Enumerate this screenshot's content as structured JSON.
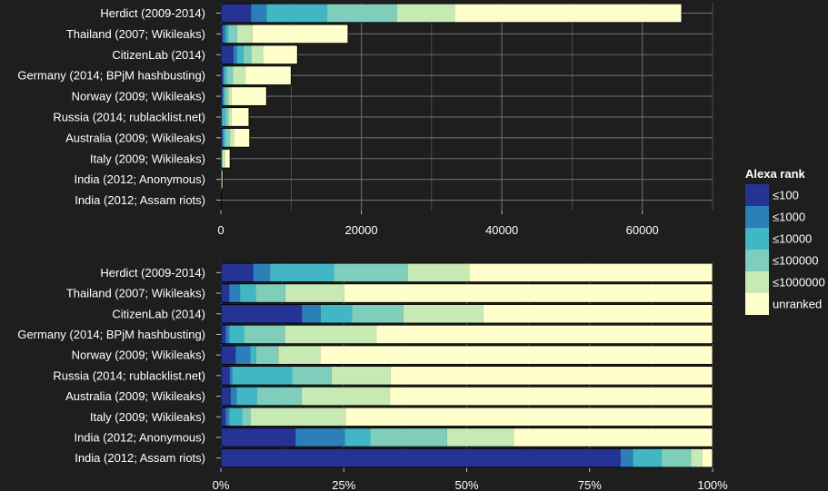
{
  "chart_data": [
    {
      "type": "bar",
      "orientation": "horizontal",
      "stacked": true,
      "categories": [
        "Herdict (2009-2014)",
        "Thailand (2007; Wikileaks)",
        "CitizenLab (2014)",
        "Germany (2014; BPjM hashbusting)",
        "Norway (2009; Wikileaks)",
        "Russia (2014; rublacklist.net)",
        "Australia (2009; Wikileaks)",
        "Italy (2009; Wikileaks)",
        "India (2012; Anonymous)",
        "India (2012; Assam riots)"
      ],
      "series": [
        {
          "name": "≤100",
          "values": [
            4300,
            300,
            1800,
            300,
            200,
            80,
            200,
            60,
            40,
            20
          ]
        },
        {
          "name": "≤1000",
          "values": [
            2200,
            400,
            500,
            150,
            200,
            80,
            150,
            30,
            30,
            5
          ]
        },
        {
          "name": "≤10000",
          "values": [
            8600,
            400,
            900,
            350,
            150,
            550,
            300,
            80,
            15,
            5
          ]
        },
        {
          "name": "≤100000",
          "values": [
            10000,
            1200,
            1200,
            900,
            500,
            350,
            650,
            40,
            50,
            5
          ]
        },
        {
          "name": "≤1000000",
          "values": [
            8200,
            2200,
            1600,
            1800,
            500,
            450,
            550,
            400,
            40,
            2
          ]
        },
        {
          "name": "unranked",
          "values": [
            32300,
            13600,
            4900,
            6500,
            4950,
            2490,
            2250,
            700,
            120,
            3
          ]
        }
      ],
      "xlim": [
        0,
        70000
      ],
      "xticks": [
        "0",
        "20000",
        "40000",
        "60000"
      ],
      "xtick_values": [
        0,
        20000,
        40000,
        60000
      ],
      "grid": true
    },
    {
      "type": "bar",
      "orientation": "horizontal",
      "stacked": true,
      "normalized": true,
      "categories": [
        "Herdict (2009-2014)",
        "Thailand (2007; Wikileaks)",
        "CitizenLab (2014)",
        "Germany (2014; BPjM hashbusting)",
        "Norway (2009; Wikileaks)",
        "Russia (2014; rublacklist.net)",
        "Australia (2009; Wikileaks)",
        "Italy (2009; Wikileaks)",
        "India (2012; Anonymous)",
        "India (2012; Assam riots)"
      ],
      "series": [
        {
          "name": "≤100",
          "values": [
            0.066,
            0.017,
            0.165,
            0.01,
            0.03,
            0.018,
            0.02,
            0.01,
            0.152,
            0.813
          ]
        },
        {
          "name": "≤1000",
          "values": [
            0.034,
            0.022,
            0.038,
            0.007,
            0.03,
            0.005,
            0.012,
            0.007,
            0.1,
            0.025
          ]
        },
        {
          "name": "≤10000",
          "values": [
            0.13,
            0.032,
            0.064,
            0.03,
            0.012,
            0.122,
            0.042,
            0.026,
            0.052,
            0.058
          ]
        },
        {
          "name": "≤100000",
          "values": [
            0.15,
            0.06,
            0.104,
            0.083,
            0.045,
            0.08,
            0.09,
            0.018,
            0.156,
            0.06
          ]
        },
        {
          "name": "≤1000000",
          "values": [
            0.125,
            0.12,
            0.163,
            0.187,
            0.085,
            0.12,
            0.18,
            0.193,
            0.136,
            0.023
          ]
        },
        {
          "name": "unranked",
          "values": [
            0.495,
            0.749,
            0.466,
            0.683,
            0.798,
            0.655,
            0.656,
            0.746,
            0.404,
            0.021
          ]
        }
      ],
      "xlim": [
        0,
        1
      ],
      "xticks": [
        "0%",
        "25%",
        "50%",
        "75%",
        "100%"
      ],
      "xtick_values": [
        0,
        0.25,
        0.5,
        0.75,
        1
      ],
      "grid": true
    }
  ],
  "legend": {
    "title": "Alexa rank",
    "placement": "right",
    "items": [
      {
        "label": "≤100",
        "color": "#253494"
      },
      {
        "label": "≤1000",
        "color": "#2c7fb8"
      },
      {
        "label": "≤10000",
        "color": "#41b6c4"
      },
      {
        "label": "≤100000",
        "color": "#7fcdbb"
      },
      {
        "label": "≤1000000",
        "color": "#c7e9b4"
      },
      {
        "label": "unranked",
        "color": "#ffffcc"
      }
    ]
  },
  "colors": {
    "background": "#1e1e1e",
    "grid": "#6b6b6b",
    "text": "#ffffff",
    "bar_outline": "#000000"
  }
}
